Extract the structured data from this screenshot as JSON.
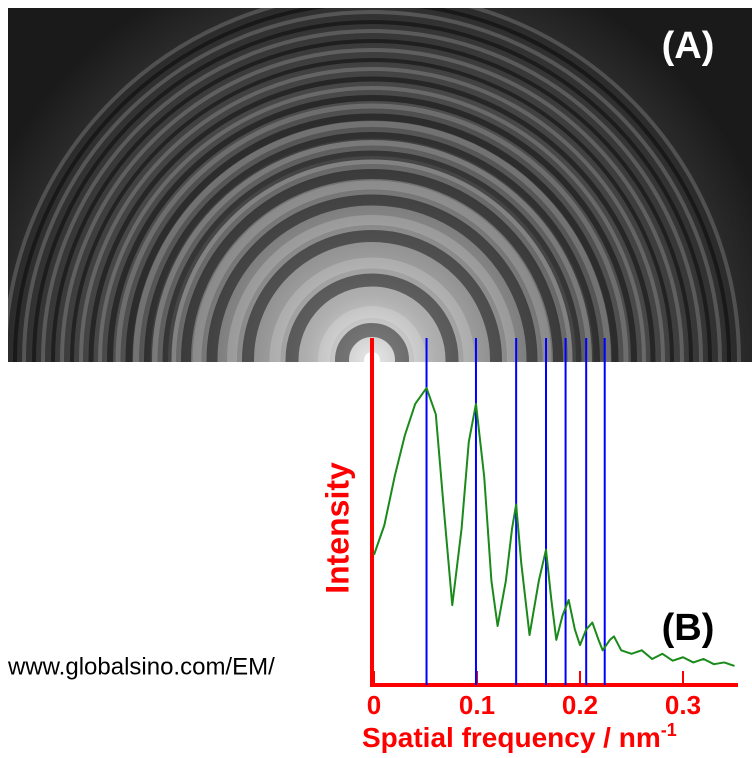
{
  "chart_data": {
    "type": "line",
    "panel_a_label": "(A)",
    "panel_b_label": "(B)",
    "watermark": "www.globalsino.com/EM/",
    "xlabel": "Spatial frequency / nm",
    "xlabel_superscript": "-1",
    "ylabel": "Intensity",
    "xlim": [
      0,
      0.35
    ],
    "ylim": [
      0,
      1
    ],
    "xticks": [
      0,
      0.1,
      0.2,
      0.3
    ],
    "axis_color": "#ff0000",
    "vlines": [
      0.051,
      0.099,
      0.138,
      0.167,
      0.186,
      0.206,
      0.224
    ],
    "vline_color": "#0000ff",
    "series": [
      {
        "color": "#1a8a1a",
        "x": [
          0,
          0.01,
          0.02,
          0.03,
          0.04,
          0.051,
          0.06,
          0.068,
          0.076,
          0.085,
          0.092,
          0.099,
          0.107,
          0.114,
          0.12,
          0.128,
          0.134,
          0.138,
          0.143,
          0.151,
          0.16,
          0.167,
          0.172,
          0.177,
          0.183,
          0.189,
          0.195,
          0.2,
          0.206,
          0.212,
          0.218,
          0.222,
          0.229,
          0.233,
          0.24,
          0.25,
          0.26,
          0.27,
          0.28,
          0.29,
          0.3,
          0.31,
          0.32,
          0.33,
          0.34,
          0.35
        ],
        "values": [
          0.375,
          0.46,
          0.6,
          0.72,
          0.81,
          0.856,
          0.78,
          0.5,
          0.23,
          0.45,
          0.7,
          0.81,
          0.6,
          0.3,
          0.17,
          0.3,
          0.45,
          0.52,
          0.35,
          0.144,
          0.3,
          0.39,
          0.25,
          0.13,
          0.2,
          0.245,
          0.16,
          0.115,
          0.16,
          0.18,
          0.13,
          0.1,
          0.13,
          0.14,
          0.1,
          0.09,
          0.1,
          0.075,
          0.09,
          0.07,
          0.08,
          0.065,
          0.075,
          0.06,
          0.065,
          0.055
        ]
      }
    ]
  }
}
